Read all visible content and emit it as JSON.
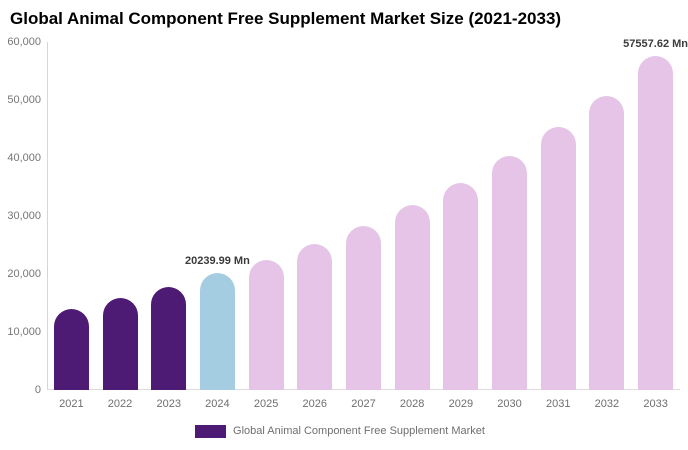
{
  "title": "Global Animal Component Free Supplement Market Size (2021-2033)",
  "colors": {
    "historical": "#4d1a74",
    "current": "#a5cde2",
    "forecast": "#e5c4e7",
    "axis_line": "#d6d6d6",
    "tick_text": "#757575",
    "annotation_text": "#3b3b3b"
  },
  "legend": {
    "label": "Global Animal Component Free Supplement Market",
    "swatch_color": "#4d1a74"
  },
  "chart_data": {
    "type": "bar",
    "title": "Global Animal Component Free Supplement Market Size (2021-2033)",
    "series_name": "Global Animal Component Free Supplement Market",
    "categories": [
      "2021",
      "2022",
      "2023",
      "2024",
      "2025",
      "2026",
      "2027",
      "2028",
      "2029",
      "2030",
      "2031",
      "2032",
      "2033"
    ],
    "values": [
      14000,
      15800,
      17800,
      20239.99,
      22400,
      25100,
      28300,
      31900,
      35700,
      40300,
      45300,
      50700,
      57557.62
    ],
    "bar_roles": [
      "historical",
      "historical",
      "historical",
      "current",
      "forecast",
      "forecast",
      "forecast",
      "forecast",
      "forecast",
      "forecast",
      "forecast",
      "forecast",
      "forecast"
    ],
    "annotations": [
      {
        "category": "2024",
        "text": "20239.99 Mn"
      },
      {
        "category": "2033",
        "text": "57557.62 Mn"
      }
    ],
    "unit": "Mn",
    "xlabel": "",
    "ylabel": "",
    "ylim": [
      0,
      60000
    ],
    "y_ticks": [
      {
        "label": "0",
        "value": 0
      },
      {
        "label": "10,000",
        "value": 10000
      },
      {
        "label": "20,000",
        "value": 20000
      },
      {
        "label": "30,000",
        "value": 30000
      },
      {
        "label": "40,000",
        "value": 40000
      },
      {
        "label": "50,000",
        "value": 50000
      },
      {
        "label": "60,000",
        "value": 60000
      }
    ],
    "grid": false,
    "legend_position": "bottom"
  }
}
